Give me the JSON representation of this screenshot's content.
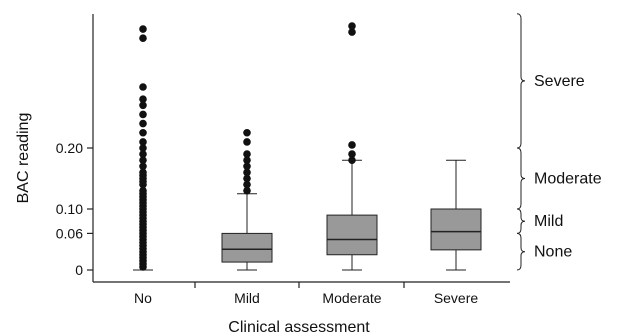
{
  "chart_data": {
    "type": "box",
    "xlabel": "Clinical assessment",
    "ylabel": "BAC reading",
    "categories": [
      "No",
      "Mild",
      "Moderate",
      "Severe"
    ],
    "yticks": [
      {
        "value": 0,
        "label": "0"
      },
      {
        "value": 0.06,
        "label": "0.06"
      },
      {
        "value": 0.1,
        "label": "0.10"
      },
      {
        "value": 0.2,
        "label": "0.20"
      }
    ],
    "ylim": [
      -0.007,
      0.42
    ],
    "boxes": [
      {
        "category": "No",
        "min": 0,
        "q1": 0,
        "median": 0,
        "q3": 0,
        "whisker_high": 0,
        "outliers": [
          0.005,
          0.01,
          0.015,
          0.02,
          0.025,
          0.03,
          0.035,
          0.04,
          0.045,
          0.05,
          0.055,
          0.06,
          0.065,
          0.07,
          0.075,
          0.08,
          0.085,
          0.09,
          0.095,
          0.1,
          0.105,
          0.11,
          0.115,
          0.12,
          0.125,
          0.13,
          0.14,
          0.145,
          0.15,
          0.155,
          0.16,
          0.17,
          0.18,
          0.19,
          0.2,
          0.21,
          0.225,
          0.24,
          0.255,
          0.27,
          0.28,
          0.3,
          0.395,
          0.38
        ]
      },
      {
        "category": "Mild",
        "min": 0,
        "q1": 0.013,
        "median": 0.034,
        "q3": 0.06,
        "whisker_high": 0.125,
        "outliers": [
          0.13,
          0.14,
          0.15,
          0.16,
          0.17,
          0.18,
          0.19,
          0.21,
          0.225
        ]
      },
      {
        "category": "Moderate",
        "min": 0,
        "q1": 0.025,
        "median": 0.05,
        "q3": 0.09,
        "whisker_high": 0.18,
        "outliers": [
          0.18,
          0.19,
          0.205,
          0.39,
          0.4
        ]
      },
      {
        "category": "Severe",
        "min": 0,
        "q1": 0.033,
        "median": 0.063,
        "q3": 0.1,
        "whisker_high": 0.18,
        "outliers": []
      }
    ],
    "severity_brackets": [
      {
        "label": "Severe",
        "from": 0.2,
        "to": 0.42
      },
      {
        "label": "Moderate",
        "from": 0.1,
        "to": 0.2
      },
      {
        "label": "Mild",
        "from": 0.06,
        "to": 0.1
      },
      {
        "label": "None",
        "from": 0,
        "to": 0.06
      }
    ],
    "colors": {
      "box_fill": "#999999",
      "stroke": "#222222",
      "point": "#111111"
    }
  }
}
